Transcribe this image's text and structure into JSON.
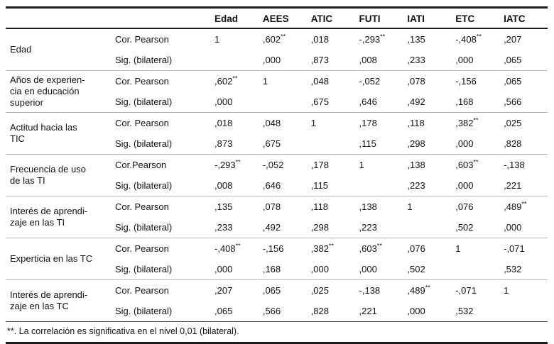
{
  "table": {
    "columns": [
      "Edad",
      "AEES",
      "ATIC",
      "FUTI",
      "IATI",
      "ETC",
      "IATC"
    ],
    "groups": [
      {
        "label": "Edad",
        "rows": [
          {
            "label": "Cor. Pearson",
            "values": [
              "1",
              ",602**",
              ",018",
              "-,293**",
              ",135",
              "-,408**",
              ",207"
            ]
          },
          {
            "label": "Sig. (bilateral)",
            "values": [
              "",
              ",000",
              ",873",
              ",008",
              ",233",
              ",000",
              ",065"
            ]
          }
        ]
      },
      {
        "label": "Años de experien-\ncia en educación\nsuperior",
        "rows": [
          {
            "label": "Cor. Pearson",
            "values": [
              ",602**",
              "1",
              ",048",
              "-,052",
              ",078",
              "-,156",
              ",065"
            ]
          },
          {
            "label": "Sig. (bilateral)",
            "values": [
              ",000",
              "",
              ",675",
              ",646",
              ",492",
              ",168",
              ",566"
            ]
          }
        ]
      },
      {
        "label": "Actitud hacia las\nTIC",
        "rows": [
          {
            "label": "Cor. Pearson",
            "values": [
              ",018",
              ",048",
              "1",
              ",178",
              ",118",
              ",382**",
              ",025"
            ]
          },
          {
            "label": "Sig. (bilateral)",
            "values": [
              ",873",
              ",675",
              "",
              ",115",
              ",298",
              ",000",
              ",828"
            ]
          }
        ]
      },
      {
        "label": "Frecuencia de uso\nde las TI",
        "rows": [
          {
            "label": "Cor.Pearson",
            "values": [
              "-,293**",
              "-,052",
              ",178",
              "1",
              ",138",
              ",603**",
              "-,138"
            ]
          },
          {
            "label": "Sig. (bilateral)",
            "values": [
              ",008",
              ",646",
              ",115",
              "",
              ",223",
              ",000",
              ",221"
            ]
          }
        ]
      },
      {
        "label": "Interés de aprendi-\nzaje en las TI",
        "rows": [
          {
            "label": "Cor. Pearson",
            "values": [
              ",135",
              ",078",
              ",118",
              ",138",
              "1",
              ",076",
              ",489**"
            ]
          },
          {
            "label": "Sig. (bilateral)",
            "values": [
              ",233",
              ",492",
              ",298",
              ",223",
              "",
              ",502",
              ",000"
            ]
          }
        ]
      },
      {
        "label": "Experticia en las TC",
        "rows": [
          {
            "label": "Cor. Pearson",
            "values": [
              "-,408**",
              "-,156",
              ",382**",
              ",603**",
              ",076",
              "1",
              "-,071"
            ]
          },
          {
            "label": "Sig. (bilateral)",
            "values": [
              ",000",
              ",168",
              ",000",
              ",000",
              ",502",
              "",
              ",532"
            ]
          }
        ]
      },
      {
        "label": "Interés de aprendi-\nzaje en las TC",
        "rows": [
          {
            "label": "Cor. Pearson",
            "values": [
              ",207",
              ",065",
              ",025",
              "-,138",
              ",489**",
              "-,071",
              "1"
            ]
          },
          {
            "label": "Sig. (bilateral)",
            "values": [
              ",065",
              ",566",
              ",828",
              ",221",
              ",000",
              ",532",
              ""
            ]
          }
        ]
      }
    ],
    "footnote": "**. La correlación es significativa en el nivel 0,01 (bilateral)."
  }
}
